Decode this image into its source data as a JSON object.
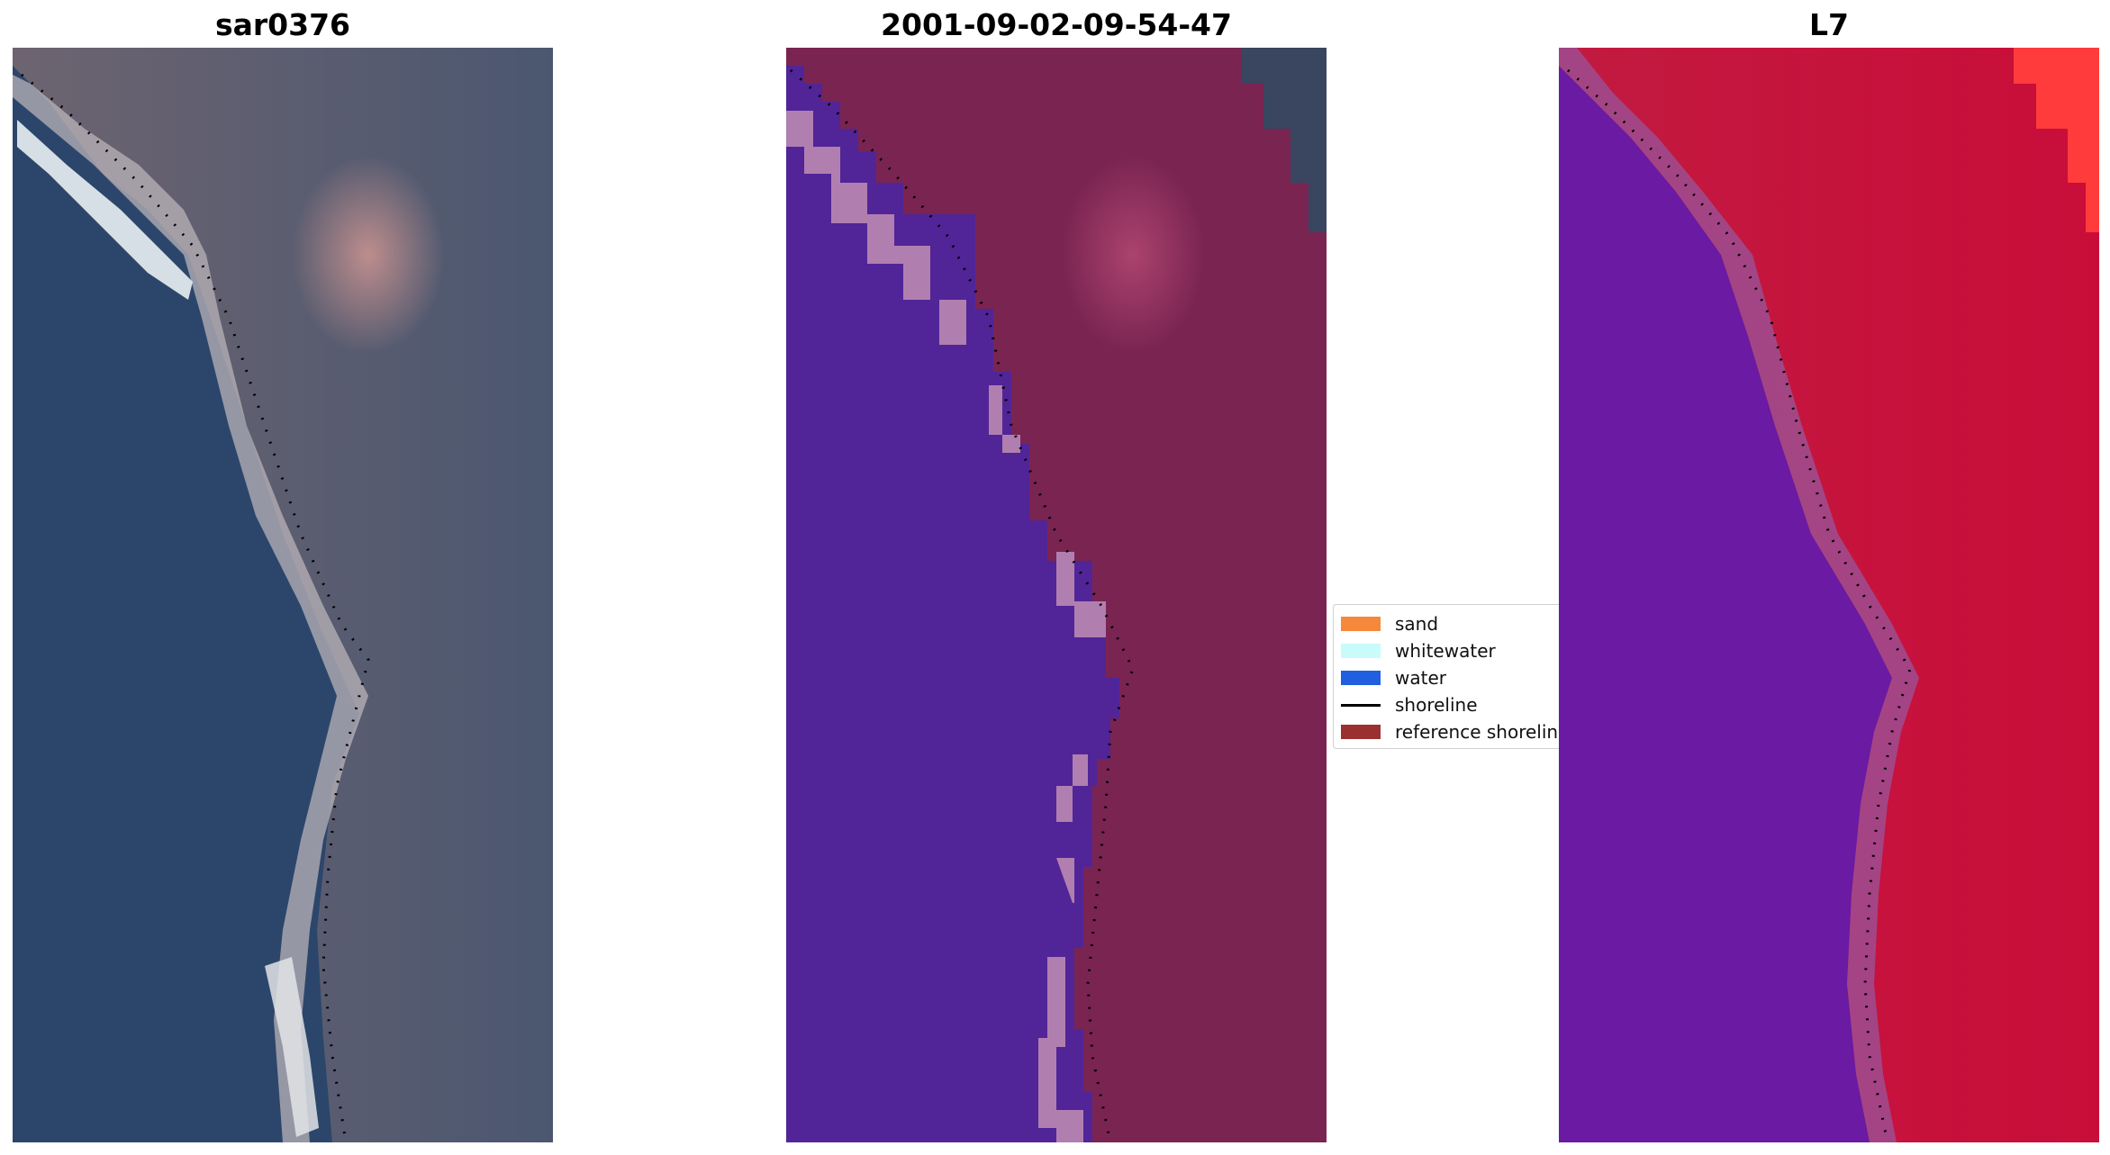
{
  "panels": [
    {
      "title": "sar0376",
      "kind": "rgb"
    },
    {
      "title": "2001-09-02-09-54-47",
      "kind": "classified"
    },
    {
      "title": "L7",
      "kind": "index"
    }
  ],
  "legend": {
    "items": [
      {
        "label": "sand",
        "type": "patch",
        "color": "#f5883a"
      },
      {
        "label": "whitewater",
        "type": "patch",
        "color": "#c9fbfb"
      },
      {
        "label": "water",
        "type": "patch",
        "color": "#1f5fe0"
      },
      {
        "label": "shoreline",
        "type": "line",
        "color": "#000000"
      },
      {
        "label": "reference shoreline",
        "type": "patch",
        "color": "#9b3030"
      }
    ]
  },
  "colors": {
    "rgb_water": "#2f4a6b",
    "rgb_land": "#6e6670",
    "class_water": "#512597",
    "class_land": "#7a2452",
    "class_whitewater": "#b07fb0",
    "index_water": "#6a1aa3",
    "index_land": "#c0143d",
    "shoreline_dots": "#000000"
  }
}
